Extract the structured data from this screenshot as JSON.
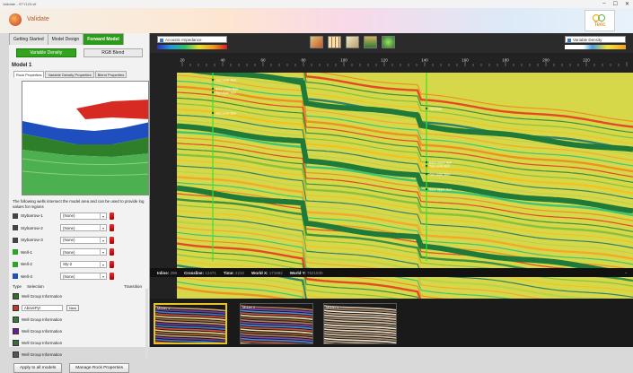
{
  "window": {
    "title": "Validate - STY123.vif",
    "controls": [
      "–",
      "☐",
      "✕"
    ]
  },
  "banner": {
    "app_name": "Validate",
    "brand": "Teric"
  },
  "workflow_tabs": [
    {
      "label": "Getting Started",
      "active": false
    },
    {
      "label": "Model Design",
      "active": false
    },
    {
      "label": "Forward Model",
      "active": true
    }
  ],
  "mode_buttons": [
    {
      "label": "Variable Density",
      "active": true
    },
    {
      "label": "RGB Blend",
      "active": false
    }
  ],
  "model": {
    "title": "Model 1",
    "subtabs": [
      {
        "label": "Rock Properties",
        "active": true
      },
      {
        "label": "Variable Density Properties",
        "active": false
      },
      {
        "label": "Blend Properties",
        "active": false
      }
    ],
    "info_text": "The following wells intersect the model area and can be used to provide log values for regions",
    "wells": [
      {
        "name": "Stybarrow-1",
        "log": "(None)",
        "icon_color": "#444444"
      },
      {
        "name": "Stybarrow-2",
        "log": "(None)",
        "icon_color": "#444444"
      },
      {
        "name": "Stybarrow-3",
        "log": "(None)",
        "icon_color": "#444444"
      },
      {
        "name": "Well-1",
        "log": "(None)",
        "icon_color": "#33a02c"
      },
      {
        "name": "Well-2",
        "log": "Sty-2",
        "icon_color": "#33a02c"
      },
      {
        "name": "Well-3",
        "log": "(None)",
        "icon_color": "#1f4fbf"
      }
    ],
    "type_header": {
      "type": "Type",
      "selection": "Selection",
      "transition": "Transition"
    },
    "type_rows": [
      {
        "label": "Well Group Information",
        "color": "#2f6f2a",
        "select": ""
      },
      {
        "label": "",
        "color": "#c0392b",
        "select": "AbovePyr",
        "new_label": "New"
      },
      {
        "label": "Well Group Information",
        "color": "#2e7d32",
        "select": ""
      },
      {
        "label": "Well Group Information",
        "color": "#6a1b9a",
        "select": ""
      },
      {
        "label": "Well Group Information",
        "color": "#3b6e3b",
        "select": ""
      },
      {
        "label": "Well Group Information",
        "color": "#555555",
        "select": ""
      }
    ],
    "bottom_buttons": {
      "apply": "Apply to all models",
      "manage": "Manage Rock Properties"
    }
  },
  "display": {
    "left_property": "Acoustic Impedance",
    "right_property": "Variable Density",
    "scale_ticks": [
      "20",
      "40",
      "60",
      "80",
      "100",
      "120",
      "140",
      "160",
      "180",
      "200",
      "220"
    ],
    "well_labels": [
      "Top Lower Barr",
      "Base Lower Barr",
      "Top Upper Barr",
      "Mid Lower Barr",
      "Top Base",
      "Base Upper Barr",
      "Top Lower Barr",
      "Top Upper Barr",
      "Base Upper Barr"
    ],
    "status": {
      "inline_label": "Inline:",
      "inline": "298",
      "crossline_label": "Crossline:",
      "crossline": "12471",
      "time_label": "Time:",
      "time": "2232",
      "worldx_label": "World X:",
      "worldx": "171882",
      "worldy_label": "World Y:",
      "worldy": "7621930"
    },
    "thumbnails": [
      {
        "label": "Model 1",
        "selected": true
      },
      {
        "label": "Model 2",
        "selected": false
      },
      {
        "label": "Model 3",
        "selected": false
      }
    ]
  },
  "colors": {
    "accent_green": "#32a21f",
    "section_bg": "#d6d84a"
  }
}
